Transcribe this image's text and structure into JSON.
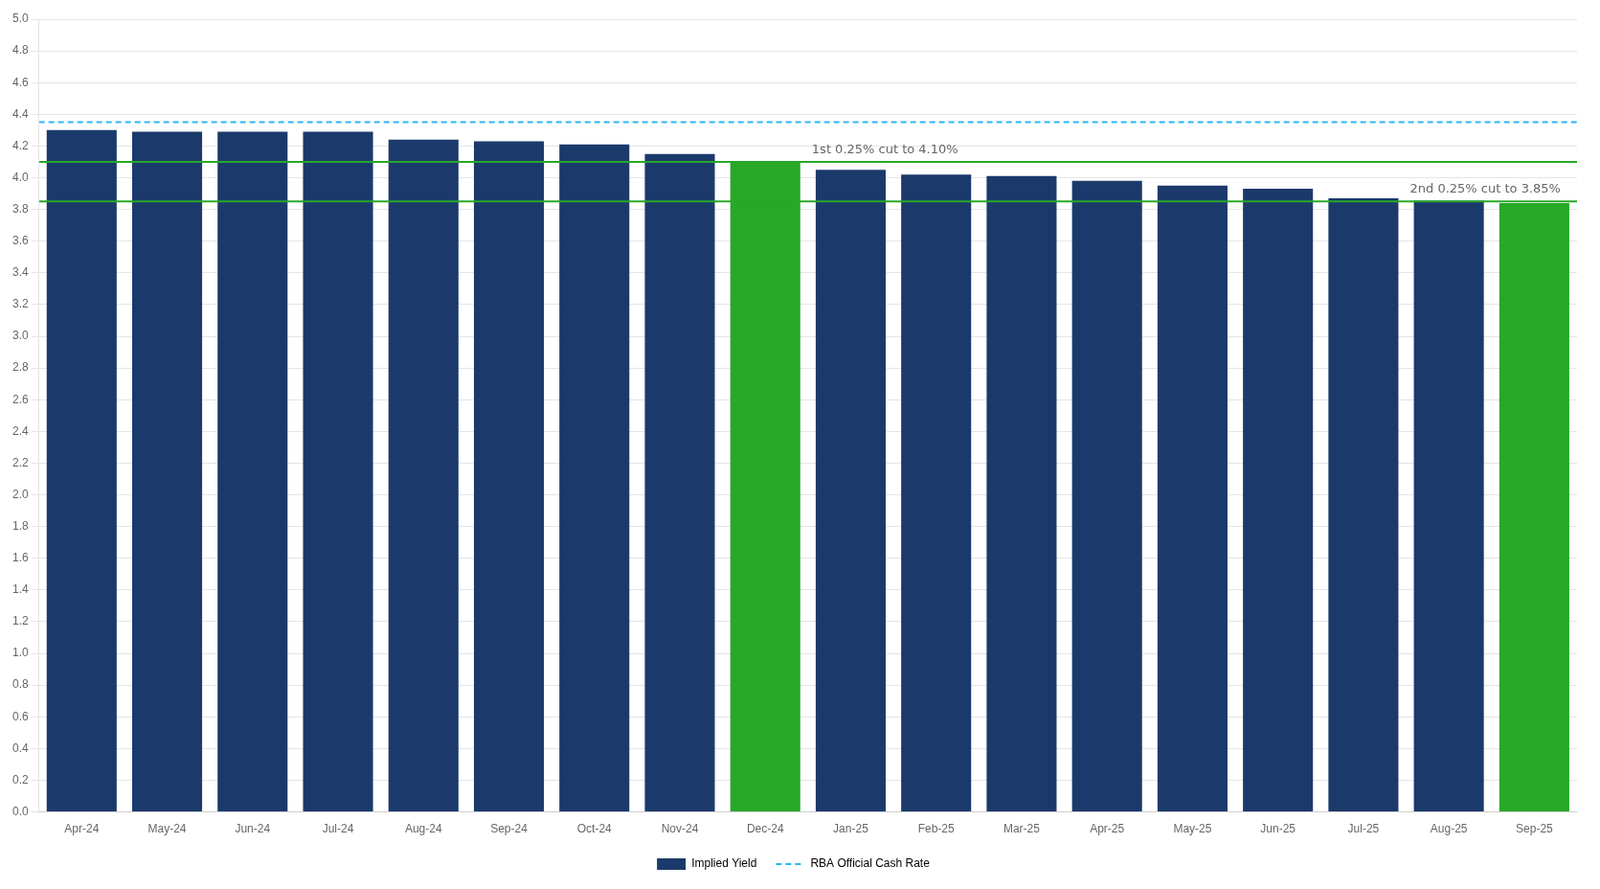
{
  "chart_data": {
    "type": "bar",
    "categories": [
      "Apr-24",
      "May-24",
      "Jun-24",
      "Jul-24",
      "Aug-24",
      "Sep-24",
      "Oct-24",
      "Nov-24",
      "Dec-24",
      "Jan-25",
      "Feb-25",
      "Mar-25",
      "Apr-25",
      "May-25",
      "Jun-25",
      "Jul-25",
      "Aug-25",
      "Sep-25"
    ],
    "series": [
      {
        "name": "Implied Yield",
        "values": [
          4.3,
          4.29,
          4.29,
          4.29,
          4.24,
          4.23,
          4.21,
          4.15,
          4.1,
          4.05,
          4.02,
          4.01,
          3.98,
          3.95,
          3.93,
          3.87,
          3.855,
          3.84
        ],
        "colors": [
          "#1b3a6b",
          "#1b3a6b",
          "#1b3a6b",
          "#1b3a6b",
          "#1b3a6b",
          "#1b3a6b",
          "#1b3a6b",
          "#1b3a6b",
          "#27a827",
          "#1b3a6b",
          "#1b3a6b",
          "#1b3a6b",
          "#1b3a6b",
          "#1b3a6b",
          "#1b3a6b",
          "#1b3a6b",
          "#1b3a6b",
          "#27a827"
        ]
      }
    ],
    "lines": [
      {
        "name": "RBA Official Cash Rate",
        "value": 4.35,
        "color": "#29b6f6",
        "line_style": "dashed"
      },
      {
        "value": 4.1,
        "color": "#27a827",
        "line_style": "solid"
      },
      {
        "value": 3.85,
        "color": "#27a827",
        "line_style": "solid"
      }
    ],
    "annotations": [
      {
        "text": "1st 0.25% cut to 4.10%",
        "y": 4.1,
        "category": "Jan-25"
      },
      {
        "text": "2nd 0.25% cut to 3.85%",
        "y": 3.85,
        "category": "Aug-25"
      }
    ],
    "ylim": [
      0.0,
      5.0
    ],
    "yticks": [
      {
        "value": 0,
        "label": "0.0"
      },
      0.2,
      0.4,
      0.6,
      0.8,
      {
        "value": 1,
        "label": "1.0"
      },
      1.2,
      1.4,
      1.6,
      1.8,
      {
        "value": 2,
        "label": "2.0"
      },
      2.2,
      2.4,
      2.6,
      2.8,
      {
        "value": 3,
        "label": "3.0"
      },
      3.2,
      3.4,
      3.6,
      3.8,
      {
        "value": 4,
        "label": "4.0"
      },
      4.2,
      4.4,
      4.6,
      4.8,
      {
        "value": 5,
        "label": "5.0"
      }
    ],
    "grid": true,
    "legend": "bottom"
  }
}
